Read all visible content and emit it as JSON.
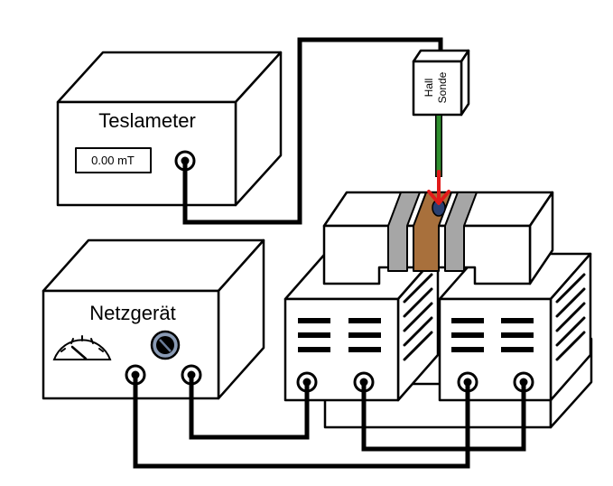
{
  "teslameter": {
    "title": "Teslameter",
    "reading": "0.00 mT"
  },
  "hall_probe": {
    "line1": "Hall",
    "line2": "Sonde"
  },
  "power_supply": {
    "title": "Netzgerät"
  },
  "colors": {
    "wire": "#000000",
    "probe_stem": "#2f8f2f",
    "arrow": "#e11a1a",
    "pole_piece": "#a6a6a6",
    "sample": "#a8703c",
    "knob_ring": "#8a9bb5"
  }
}
